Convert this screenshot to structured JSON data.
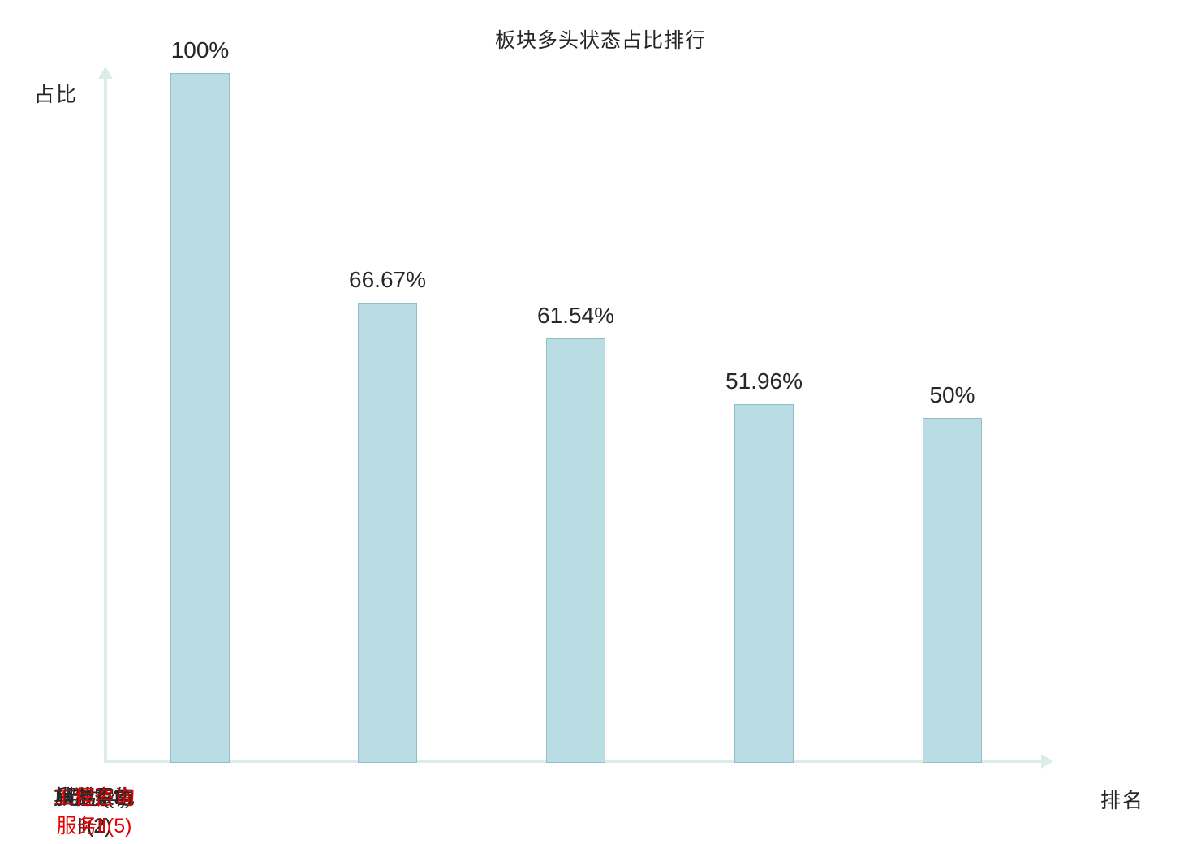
{
  "title": "板块多头状态占比排行",
  "axes": {
    "y_label": "占比",
    "x_label": "排名"
  },
  "colors": {
    "bar_fill": "#b9dde2",
    "bar_border": "#8fbec6",
    "axis": "#d8eee6",
    "text": "#262626",
    "highlight": "#e60000",
    "background": "#ffffff"
  },
  "chart_data": {
    "type": "bar",
    "title": "板块多头状态占比排行",
    "xlabel": "排名",
    "ylabel": "占比",
    "ylim": [
      0,
      100
    ],
    "grid": false,
    "legend_position": "none",
    "categories": [
      "旅游零售Ⅱ(1)",
      "其他家电Ⅱ(2)",
      "贸易Ⅱ(3)",
      "电力(4)",
      "工程咨询服务Ⅱ(5)"
    ],
    "category_display": [
      "旅游零售\nⅡ(1)",
      "其他家电\nⅡ(2)",
      "贸易Ⅱ(3)",
      "电力(4)",
      "工程咨询\n服务Ⅱ(5)"
    ],
    "values": [
      100,
      66.67,
      61.54,
      51.96,
      50
    ],
    "value_labels": [
      "100%",
      "66.67%",
      "61.54%",
      "51.96%",
      "50%"
    ],
    "highlight_index": 4
  }
}
